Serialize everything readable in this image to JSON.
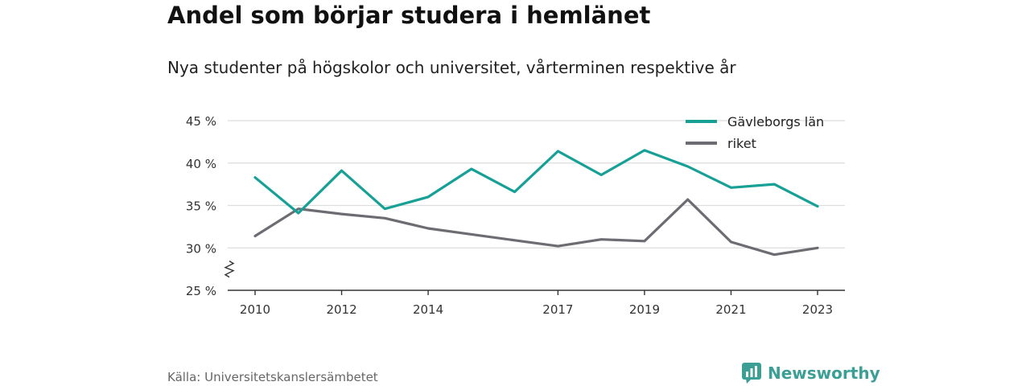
{
  "title": "Andel som börjar studera i hemlänet",
  "subtitle": "Nya studenter på högskolor och universitet, vårterminen respektive år",
  "source": "Källa: Universitetskanslersämbetet",
  "brand": "Newsworthy",
  "colors": {
    "series1": "#16a096",
    "series2": "#6d6c73",
    "grid": "#dddddd",
    "brand": "#3c9f96"
  },
  "chart_data": {
    "type": "line",
    "x": [
      2010,
      2011,
      2012,
      2013,
      2014,
      2015,
      2016,
      2017,
      2018,
      2019,
      2020,
      2021,
      2022,
      2023
    ],
    "x_tick_labels": [
      "2010",
      "2012",
      "2014",
      "2017",
      "2019",
      "2021",
      "2023"
    ],
    "y_tick_labels": [
      "25 %",
      "30 %",
      "35 %",
      "40 %",
      "45 %"
    ],
    "ylim": [
      25,
      45
    ],
    "y_axis_break": true,
    "grid": true,
    "legend_position": "top-right",
    "series": [
      {
        "name": "Gävleborgs län",
        "values": [
          38.3,
          34.1,
          39.1,
          34.6,
          36.0,
          39.3,
          36.6,
          41.4,
          38.6,
          41.5,
          39.6,
          37.1,
          37.5,
          34.9
        ]
      },
      {
        "name": "riket",
        "values": [
          31.4,
          34.6,
          34.0,
          33.5,
          32.3,
          31.6,
          30.9,
          30.2,
          31.0,
          30.8,
          35.7,
          30.7,
          29.2,
          30.0
        ]
      }
    ]
  }
}
